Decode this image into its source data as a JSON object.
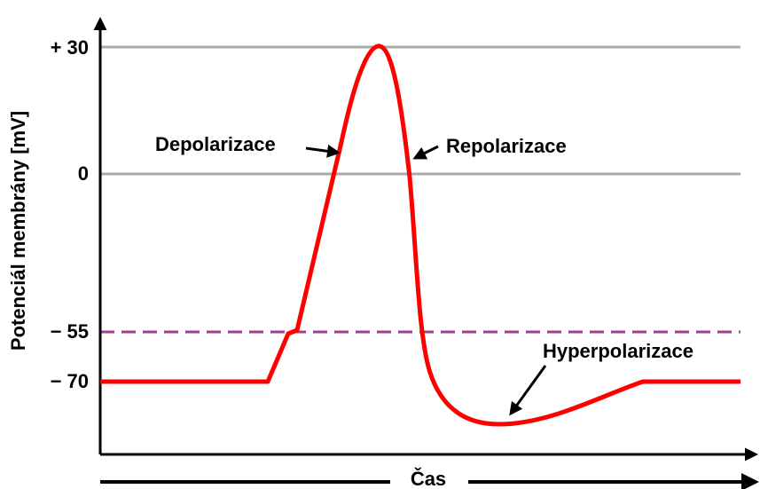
{
  "y_axis_label": "Potenciál membrány [mV]",
  "x_axis_label": "Čas",
  "tick_labels": [
    "+ 30",
    "0",
    "− 55",
    "− 70"
  ],
  "annotations": [
    "Depolarizace",
    "Repolarizace",
    "Hyperpolarizace"
  ]
}
